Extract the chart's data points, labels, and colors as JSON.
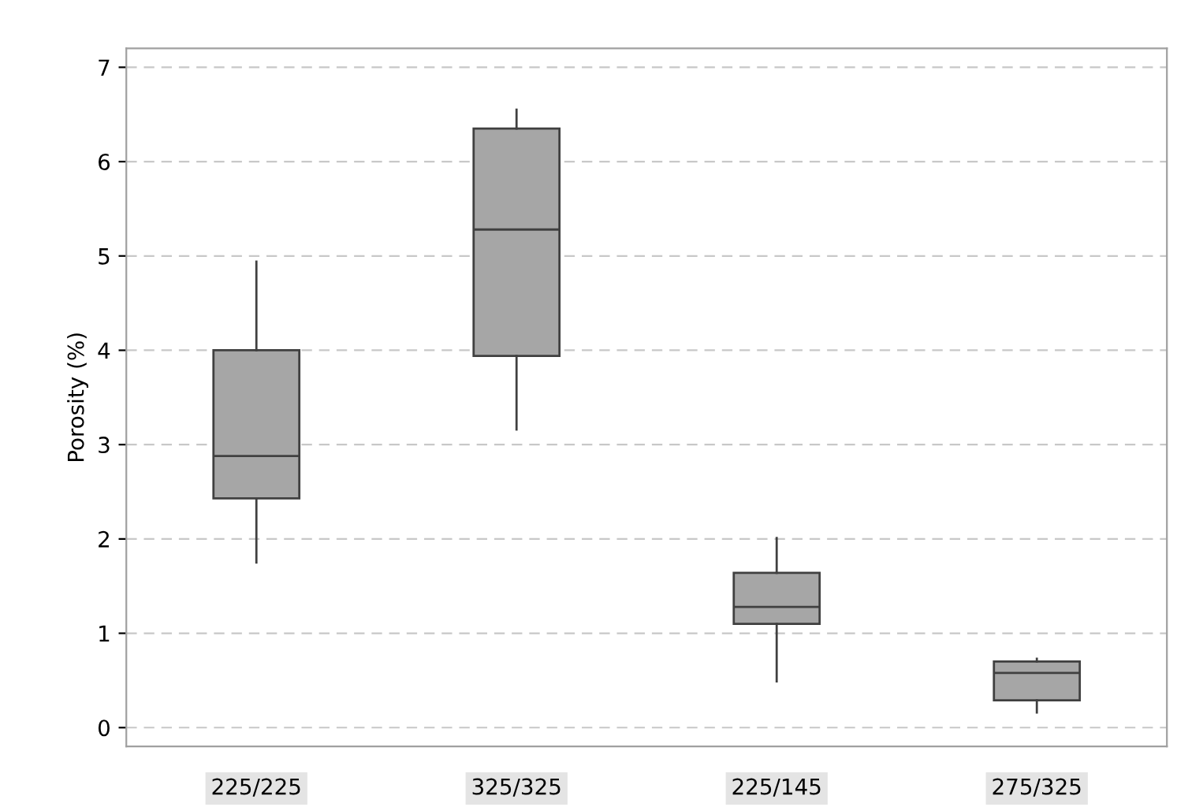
{
  "chart_data": {
    "type": "box",
    "ylabel": "Porosity (%)",
    "categories": [
      "225/225",
      "325/325",
      "225/145",
      "275/325"
    ],
    "boxes": [
      {
        "low": 1.75,
        "q1": 2.43,
        "median": 2.88,
        "q3": 4.0,
        "high": 4.94
      },
      {
        "low": 3.16,
        "q1": 3.94,
        "median": 5.28,
        "q3": 6.35,
        "high": 6.55
      },
      {
        "low": 0.49,
        "q1": 1.1,
        "median": 1.28,
        "q3": 1.64,
        "high": 2.01
      },
      {
        "low": 0.16,
        "q1": 0.29,
        "median": 0.58,
        "q3": 0.7,
        "high": 0.73
      }
    ],
    "color": "#a6a6a6",
    "ylim": [
      -0.2,
      7.2
    ],
    "yticks": [
      0,
      1,
      2,
      3,
      4,
      5,
      6,
      7
    ],
    "grid": "y"
  }
}
